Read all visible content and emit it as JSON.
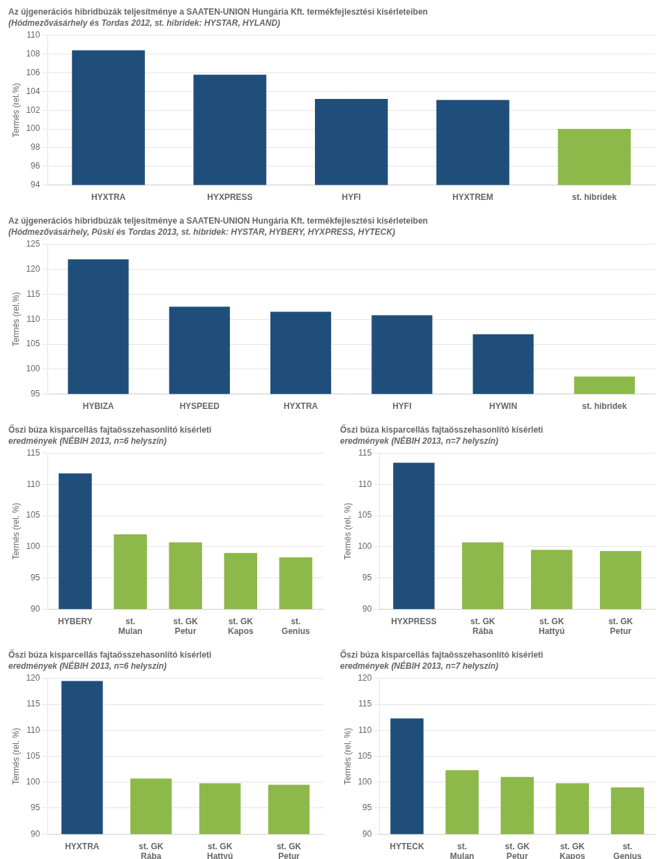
{
  "chart_data": [
    {
      "type": "bar",
      "title": "Az újgenerációs hibridbúzák teljesítménye a SAATEN-UNION Hungária Kft. termékfejlesztési kísérleteiben",
      "subtitle": "(Hódmezővásárhely és Tordas 2012, st. hibridek: HYSTAR, HYLAND)",
      "ylabel": "Termés (rel.%)",
      "categories": [
        "HYXTRA",
        "HYXPRESS",
        "HYFI",
        "HYXTREM",
        "st. hibridek"
      ],
      "values": [
        108.4,
        105.8,
        103.2,
        103.1,
        100.0
      ],
      "colors": [
        "#1f4e7a",
        "#1f4e7a",
        "#1f4e7a",
        "#1f4e7a",
        "#8db84a"
      ],
      "ylim": [
        94,
        110
      ],
      "yticks": [
        94,
        96,
        98,
        100,
        102,
        104,
        106,
        108,
        110
      ],
      "grid": true
    },
    {
      "type": "bar",
      "title": "Az újgenerációs hibridbúzák teljesítménye a SAATEN-UNION Hungária Kft. termékfejlesztési kísérleteiben",
      "subtitle": "(Hódmezővásárhely, Püski és Tordas 2013, st. hibridek: HYSTAR, HYBERY, HYXPRESS, HYTECK)",
      "ylabel": "Termés (rel.%)",
      "categories": [
        "HYBIZA",
        "HYSPEED",
        "HYXTRA",
        "HYFI",
        "HYWIN",
        "st. hibridek"
      ],
      "values": [
        122.0,
        112.5,
        111.5,
        110.8,
        107.0,
        98.5
      ],
      "colors": [
        "#1f4e7a",
        "#1f4e7a",
        "#1f4e7a",
        "#1f4e7a",
        "#1f4e7a",
        "#8db84a"
      ],
      "ylim": [
        95,
        125
      ],
      "yticks": [
        95,
        100,
        105,
        110,
        115,
        120,
        125
      ],
      "grid": true
    },
    {
      "type": "bar",
      "title": "Őszi búza kisparcellás fajtaösszehasonlító kísérleti",
      "subtitle": "eredmények (NÉBIH 2013, n=6 helyszín)",
      "ylabel": "Termés (rel. %)",
      "categories": [
        "HYBERY",
        "st.\nMulan",
        "st. GK\nPetur",
        "st. GK\nKapos",
        "st.\nGenius"
      ],
      "values": [
        111.8,
        102.0,
        100.7,
        99.0,
        98.3
      ],
      "colors": [
        "#1f4e7a",
        "#8db84a",
        "#8db84a",
        "#8db84a",
        "#8db84a"
      ],
      "ylim": [
        90,
        115
      ],
      "yticks": [
        90,
        95,
        100,
        105,
        110,
        115
      ],
      "grid": true
    },
    {
      "type": "bar",
      "title": "Őszi búza kisparcellás fajtaösszehasonlító kísérleti",
      "subtitle": "eredmények (NÉBIH 2013, n=7 helyszín)",
      "ylabel": "Termés (rel. %)",
      "categories": [
        "HYXPRESS",
        "st. GK\nRába",
        "st. GK\nHattyú",
        "st. GK\nPetur"
      ],
      "values": [
        113.5,
        100.7,
        99.5,
        99.3
      ],
      "colors": [
        "#1f4e7a",
        "#8db84a",
        "#8db84a",
        "#8db84a"
      ],
      "ylim": [
        90,
        115
      ],
      "yticks": [
        90,
        95,
        100,
        105,
        110,
        115
      ],
      "grid": true
    },
    {
      "type": "bar",
      "title": "Őszi búza kisparcellás fajtaösszehasonlító kísérleti",
      "subtitle": "eredmények (NÉBIH 2013, n=6 helyszín)",
      "ylabel": "Termés (rel. %)",
      "categories": [
        "HYXTRA",
        "st. GK\nRába",
        "st. GK\nHattyú",
        "st. GK\nPetur"
      ],
      "values": [
        119.5,
        100.7,
        99.8,
        99.5
      ],
      "colors": [
        "#1f4e7a",
        "#8db84a",
        "#8db84a",
        "#8db84a"
      ],
      "ylim": [
        90,
        120
      ],
      "yticks": [
        90,
        95,
        100,
        105,
        110,
        115,
        120
      ],
      "grid": true
    },
    {
      "type": "bar",
      "title": "Őszi búza kisparcellás fajtaösszehasonlító kísérleti",
      "subtitle": "eredmények (NÉBIH 2013, n=7 helyszín)",
      "ylabel": "Termés (rel. %)",
      "categories": [
        "HYTECK",
        "st.\nMulan",
        "st. GK\nPetur",
        "st. GK\nKapos",
        "st.\nGenius"
      ],
      "values": [
        112.3,
        102.3,
        101.0,
        99.8,
        99.0
      ],
      "colors": [
        "#1f4e7a",
        "#8db84a",
        "#8db84a",
        "#8db84a",
        "#8db84a"
      ],
      "ylim": [
        90,
        120
      ],
      "yticks": [
        90,
        95,
        100,
        105,
        110,
        115,
        120
      ],
      "grid": true
    }
  ]
}
